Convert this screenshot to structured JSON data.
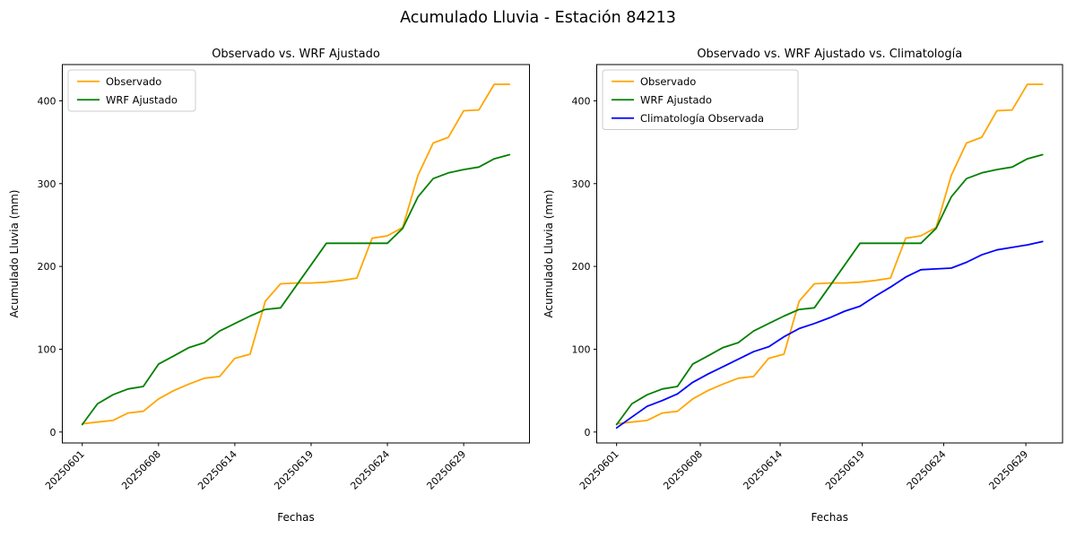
{
  "figure": {
    "suptitle": "Acumulado Lluvia - Estación 84213",
    "background": "#ffffff"
  },
  "palette": {
    "observado": "#ffa500",
    "wrf_ajustado": "#008000",
    "climatologia": "#0000ff",
    "spine": "#000000",
    "text": "#000000",
    "legend_border": "#cccccc"
  },
  "chart_data": [
    {
      "type": "line",
      "title": "Observado vs. WRF Ajustado",
      "xlabel": "Fechas",
      "ylabel": "Acumulado Lluvia (mm)",
      "x_index": [
        0,
        1,
        2,
        3,
        4,
        5,
        6,
        7,
        8,
        9,
        10,
        11,
        12,
        13,
        14,
        15,
        16,
        17,
        18,
        19,
        20,
        21,
        22,
        23,
        24,
        25,
        26,
        27,
        28
      ],
      "xticks": {
        "labels": [
          "20250601",
          "20250608",
          "20250614",
          "20250619",
          "20250624",
          "20250629"
        ],
        "at": [
          0,
          5,
          10,
          15,
          20,
          25
        ],
        "rotation_deg": 45
      },
      "yticks": [
        0,
        100,
        200,
        300,
        400
      ],
      "ylim": [
        -13.2,
        443.8
      ],
      "grid": false,
      "legend_position": "upper left",
      "series": [
        {
          "name": "Observado",
          "color": "#ffa500",
          "values": [
            10,
            12,
            14,
            23,
            25,
            40,
            50,
            58,
            65,
            67,
            89,
            94,
            158,
            179,
            180,
            180,
            181,
            183,
            186,
            234,
            237,
            247,
            310,
            349,
            356,
            388,
            389,
            420,
            420
          ]
        },
        {
          "name": "WRF Ajustado",
          "color": "#008000",
          "values": [
            9,
            34,
            45,
            52,
            55,
            82,
            92,
            102,
            108,
            122,
            131,
            140,
            148,
            150,
            176,
            202,
            228,
            228,
            228,
            228,
            228,
            246,
            284,
            306,
            313,
            317,
            320,
            330,
            335
          ]
        }
      ]
    },
    {
      "type": "line",
      "title": "Observado vs. WRF Ajustado vs. Climatología",
      "xlabel": "Fechas",
      "ylabel": "Acumulado Lluvia (mm)",
      "x_index": [
        0,
        1,
        2,
        3,
        4,
        5,
        6,
        7,
        8,
        9,
        10,
        11,
        12,
        13,
        14,
        15,
        16,
        17,
        18,
        19,
        20,
        21,
        22,
        23,
        24,
        25,
        26,
        27,
        28
      ],
      "xticks": {
        "labels": [
          "20250601",
          "20250608",
          "20250614",
          "20250619",
          "20250624",
          "20250629"
        ],
        "at": [
          0,
          5.5,
          10.75,
          16.15,
          21.5,
          26.9
        ],
        "rotation_deg": 45
      },
      "yticks": [
        0,
        100,
        200,
        300,
        400
      ],
      "ylim": [
        -13.2,
        443.8
      ],
      "grid": false,
      "legend_position": "upper left",
      "series": [
        {
          "name": "Observado",
          "color": "#ffa500",
          "values": [
            10,
            12,
            14,
            23,
            25,
            40,
            50,
            58,
            65,
            67,
            89,
            94,
            158,
            179,
            180,
            180,
            181,
            183,
            186,
            234,
            237,
            247,
            310,
            349,
            356,
            388,
            389,
            420,
            420
          ]
        },
        {
          "name": "WRF Ajustado",
          "color": "#008000",
          "values": [
            9,
            34,
            45,
            52,
            55,
            82,
            92,
            102,
            108,
            122,
            131,
            140,
            148,
            150,
            176,
            202,
            228,
            228,
            228,
            228,
            228,
            246,
            284,
            306,
            313,
            317,
            320,
            330,
            335
          ]
        },
        {
          "name": "Climatología Observada",
          "color": "#0000ff",
          "values": [
            5,
            18,
            31,
            38,
            46,
            60,
            70,
            79,
            88,
            97,
            103,
            115,
            125,
            131,
            138,
            146,
            152,
            164,
            175,
            187,
            196,
            197,
            198,
            205,
            214,
            220,
            223,
            226,
            230
          ]
        }
      ]
    }
  ]
}
